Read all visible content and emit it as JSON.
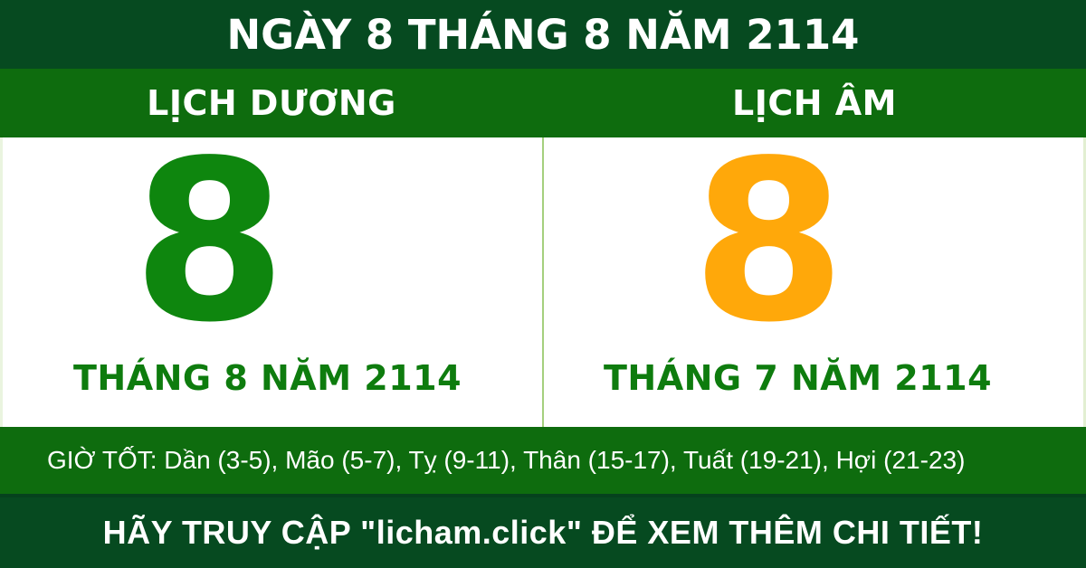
{
  "header": {
    "title": "NGÀY 8 THÁNG 8 NĂM 2114"
  },
  "subheader": {
    "solar_label": "LỊCH DƯƠNG",
    "lunar_label": "LỊCH ÂM"
  },
  "solar": {
    "day": "8",
    "month_year": "THÁNG 8 NĂM 2114"
  },
  "lunar": {
    "day": "8",
    "month_year": "THÁNG 7 NĂM 2114"
  },
  "good_hours": {
    "text": "GIỜ TỐT: Dần (3-5), Mão (5-7), Tỵ (9-11), Thân (15-17), Tuất (19-21), Hợi (21-23)"
  },
  "footer": {
    "cta": "HÃY TRUY CẬP \"licham.click\" ĐỂ XEM THÊM CHI TIẾT!"
  },
  "colors": {
    "dark_green": "#064A20",
    "green": "#0E6C0E",
    "solar_day_green": "#0E860E",
    "lunar_day_orange": "#FFA80A",
    "month_text_green": "#0E7C0E",
    "divider_light_green": "#A5D07E",
    "text_white": "#FFFFFF"
  }
}
